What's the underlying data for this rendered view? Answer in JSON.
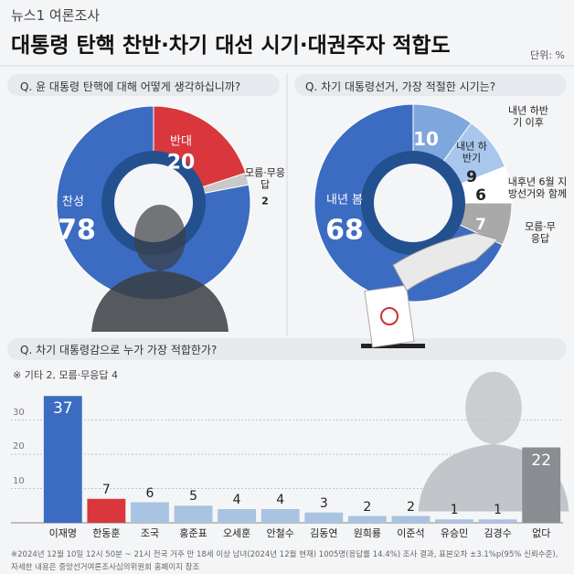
{
  "header": {
    "source": "뉴스1 여론조사",
    "title": "대통령 탄핵 찬반·차기 대선 시기·대권주자 적합도",
    "unit": "단위: %"
  },
  "chart_data": [
    {
      "type": "donut",
      "title": "Q. 윤 대통령 탄핵에 대해 어떻게 생각하십니까?",
      "categories": [
        "반대",
        "모름·무응답",
        "찬성"
      ],
      "values": [
        20,
        2,
        78
      ],
      "colors": [
        "#d9373c",
        "#c9c9c9",
        "#3b6cc1"
      ]
    },
    {
      "type": "donut",
      "title": "Q. 차기 대통령선거, 가장 적절한 시기는?",
      "categories": [
        "내년 하반기 이후",
        "내년 하반기",
        "내후년 6월 지방선거와 함께",
        "모름·무응답",
        "내년 봄"
      ],
      "values": [
        10,
        9,
        6,
        7,
        68
      ],
      "colors": [
        "#7ea7dd",
        "#a9c6ec",
        "#ffffff",
        "#a9a9a9",
        "#3b6cc1"
      ]
    },
    {
      "type": "bar",
      "title": "Q. 차기 대통령감으로 누가 가장 적합한가?",
      "note": "※ 기타 2, 모름·무응답 4",
      "categories": [
        "이재명",
        "한동훈",
        "조국",
        "홍준표",
        "오세훈",
        "안철수",
        "김동연",
        "원희룡",
        "이준석",
        "유승민",
        "김경수",
        "없다"
      ],
      "values": [
        37,
        7,
        6,
        5,
        4,
        4,
        3,
        2,
        2,
        1,
        1,
        22
      ],
      "colors": [
        "#3b6cc1",
        "#d9373c",
        "#a9c3e2",
        "#a9c3e2",
        "#a9c3e2",
        "#a9c3e2",
        "#a9c3e2",
        "#a9c3e2",
        "#a9c3e2",
        "#a9c3e2",
        "#a9c3e2",
        "#8a8d92"
      ],
      "ylim": [
        0,
        40
      ],
      "yticks": [
        10,
        20,
        30
      ],
      "grid": true
    }
  ],
  "footer": {
    "lines": [
      "※2024년 12월 10일 12시 50분 ~ 21시 전국 거주 만 18세 이상 남녀(2024년 12월 현재) 1005명(응답률 14.4%) 조사 결과, 표본오차 ±3.1%p(95% 신뢰수준),",
      "자세한 내용은 중앙선거여론조사심의위원회 홈페이지 참조"
    ]
  }
}
